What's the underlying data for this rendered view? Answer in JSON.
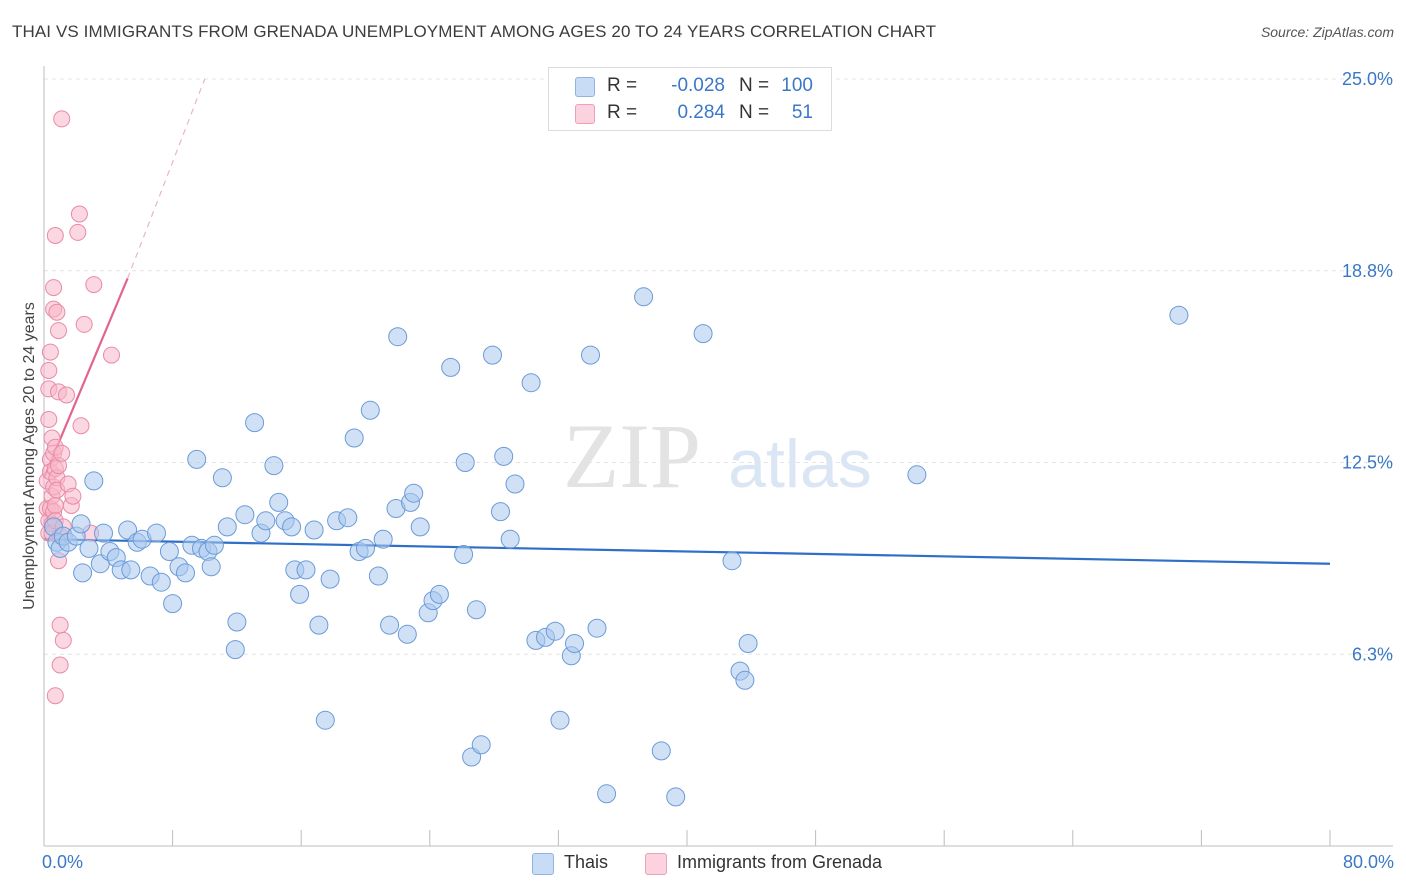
{
  "header": {
    "title": "THAI VS IMMIGRANTS FROM GRENADA UNEMPLOYMENT AMONG AGES 20 TO 24 YEARS CORRELATION CHART",
    "source": "Source: ZipAtlas.com"
  },
  "watermark": {
    "zip": "ZIP",
    "atlas": "atlas"
  },
  "stats": {
    "rows": [
      {
        "r_label": "R =",
        "r_value": "-0.028",
        "n_label": "N =",
        "n_value": "100",
        "color": "#aac8ee"
      },
      {
        "r_label": "R =",
        "r_value": "0.284",
        "n_label": "N =",
        "n_value": "51",
        "color": "#f7b6c9"
      }
    ]
  },
  "legend": {
    "items": [
      {
        "label": "Thais",
        "color": "#aac8ee"
      },
      {
        "label": "Immigrants from Grenada",
        "color": "#f7b6c9"
      }
    ]
  },
  "chart_data": {
    "type": "scatter",
    "title": "THAI VS IMMIGRANTS FROM GRENADA UNEMPLOYMENT AMONG AGES 20 TO 24 YEARS CORRELATION CHART",
    "xlabel": "",
    "ylabel": "Unemployment Among Ages 20 to 24 years",
    "xlim": [
      0,
      80
    ],
    "ylim": [
      0,
      25
    ],
    "x_tick_labels": [
      "0.0%",
      "80.0%"
    ],
    "y_ticks": [
      {
        "value": 6.25,
        "label": "6.3%"
      },
      {
        "value": 12.5,
        "label": "12.5%"
      },
      {
        "value": 18.75,
        "label": "18.8%"
      },
      {
        "value": 25.0,
        "label": "25.0%"
      }
    ],
    "grid": true,
    "series": [
      {
        "name": "Thais",
        "color": "#aac8ee",
        "stroke": "#6b9bd9",
        "trend": {
          "x": [
            0,
            80
          ],
          "y": [
            10.0,
            9.2
          ],
          "color": "#2f6fc7"
        },
        "points": [
          [
            0.6,
            10.4
          ],
          [
            0.8,
            9.9
          ],
          [
            1.0,
            9.7
          ],
          [
            1.2,
            10.1
          ],
          [
            1.5,
            9.9
          ],
          [
            2.0,
            10.1
          ],
          [
            2.3,
            10.5
          ],
          [
            2.4,
            8.9
          ],
          [
            2.8,
            9.7
          ],
          [
            3.1,
            11.9
          ],
          [
            3.5,
            9.2
          ],
          [
            3.7,
            10.2
          ],
          [
            4.1,
            9.6
          ],
          [
            4.5,
            9.4
          ],
          [
            4.8,
            9.0
          ],
          [
            5.2,
            10.3
          ],
          [
            5.4,
            9.0
          ],
          [
            5.8,
            9.9
          ],
          [
            6.1,
            10.0
          ],
          [
            6.6,
            8.8
          ],
          [
            7.0,
            10.2
          ],
          [
            7.3,
            8.6
          ],
          [
            7.8,
            9.6
          ],
          [
            8.0,
            7.9
          ],
          [
            8.4,
            9.1
          ],
          [
            8.8,
            8.9
          ],
          [
            9.2,
            9.8
          ],
          [
            9.5,
            12.6
          ],
          [
            9.8,
            9.7
          ],
          [
            10.2,
            9.6
          ],
          [
            10.4,
            9.1
          ],
          [
            10.6,
            9.8
          ],
          [
            11.1,
            12.0
          ],
          [
            11.4,
            10.4
          ],
          [
            11.9,
            6.4
          ],
          [
            12.0,
            7.3
          ],
          [
            12.5,
            10.8
          ],
          [
            13.1,
            13.8
          ],
          [
            13.5,
            10.2
          ],
          [
            13.8,
            10.6
          ],
          [
            14.3,
            12.4
          ],
          [
            14.6,
            11.2
          ],
          [
            15.0,
            10.6
          ],
          [
            15.4,
            10.4
          ],
          [
            15.6,
            9.0
          ],
          [
            15.9,
            8.2
          ],
          [
            16.3,
            9.0
          ],
          [
            16.8,
            10.3
          ],
          [
            17.1,
            7.2
          ],
          [
            17.5,
            4.1
          ],
          [
            17.8,
            8.7
          ],
          [
            18.2,
            10.6
          ],
          [
            18.9,
            10.7
          ],
          [
            19.3,
            13.3
          ],
          [
            19.6,
            9.6
          ],
          [
            20.0,
            9.7
          ],
          [
            20.3,
            14.2
          ],
          [
            20.8,
            8.8
          ],
          [
            21.1,
            10.0
          ],
          [
            21.5,
            7.2
          ],
          [
            21.9,
            11.0
          ],
          [
            22.0,
            16.6
          ],
          [
            22.6,
            6.9
          ],
          [
            22.8,
            11.2
          ],
          [
            23.0,
            11.5
          ],
          [
            23.4,
            10.4
          ],
          [
            23.9,
            7.6
          ],
          [
            24.2,
            8.0
          ],
          [
            24.6,
            8.2
          ],
          [
            25.3,
            15.6
          ],
          [
            26.1,
            9.5
          ],
          [
            26.2,
            12.5
          ],
          [
            26.6,
            2.9
          ],
          [
            26.9,
            7.7
          ],
          [
            27.2,
            3.3
          ],
          [
            27.9,
            16.0
          ],
          [
            28.4,
            10.9
          ],
          [
            28.6,
            12.7
          ],
          [
            29.0,
            10.0
          ],
          [
            29.3,
            11.8
          ],
          [
            30.3,
            15.1
          ],
          [
            30.6,
            6.7
          ],
          [
            31.2,
            6.8
          ],
          [
            31.8,
            7.0
          ],
          [
            32.1,
            4.1
          ],
          [
            32.8,
            6.2
          ],
          [
            33.0,
            6.6
          ],
          [
            34.0,
            16.0
          ],
          [
            34.4,
            7.1
          ],
          [
            35.0,
            1.7
          ],
          [
            37.3,
            17.9
          ],
          [
            38.4,
            3.1
          ],
          [
            39.3,
            1.6
          ],
          [
            41.0,
            16.7
          ],
          [
            42.8,
            9.3
          ],
          [
            43.3,
            5.7
          ],
          [
            43.6,
            5.4
          ],
          [
            43.8,
            6.6
          ],
          [
            54.3,
            12.1
          ],
          [
            70.6,
            17.3
          ]
        ]
      },
      {
        "name": "Immigrants from Grenada",
        "color": "#f7b6c9",
        "stroke": "#e98aa8",
        "trend": {
          "x": [
            0,
            5.2
          ],
          "y": [
            12.0,
            18.5
          ],
          "color": "#e2648f",
          "extended_to": [
            10.0,
            25.0
          ]
        },
        "points": [
          [
            0.2,
            11.9
          ],
          [
            0.2,
            11.0
          ],
          [
            0.3,
            10.2
          ],
          [
            0.3,
            10.6
          ],
          [
            0.3,
            15.5
          ],
          [
            0.3,
            14.9
          ],
          [
            0.3,
            13.9
          ],
          [
            0.4,
            16.1
          ],
          [
            0.4,
            12.6
          ],
          [
            0.4,
            12.2
          ],
          [
            0.4,
            11.0
          ],
          [
            0.5,
            11.4
          ],
          [
            0.5,
            10.5
          ],
          [
            0.5,
            10.2
          ],
          [
            0.5,
            13.3
          ],
          [
            0.6,
            12.8
          ],
          [
            0.6,
            11.7
          ],
          [
            0.6,
            10.9
          ],
          [
            0.6,
            18.2
          ],
          [
            0.6,
            17.5
          ],
          [
            0.7,
            19.9
          ],
          [
            0.7,
            13.0
          ],
          [
            0.7,
            12.3
          ],
          [
            0.7,
            11.1
          ],
          [
            0.7,
            10.6
          ],
          [
            0.7,
            4.9
          ],
          [
            0.8,
            17.4
          ],
          [
            0.8,
            12.0
          ],
          [
            0.8,
            11.6
          ],
          [
            0.9,
            16.8
          ],
          [
            0.9,
            14.8
          ],
          [
            0.9,
            12.4
          ],
          [
            0.9,
            9.3
          ],
          [
            1.0,
            10.1
          ],
          [
            1.0,
            7.2
          ],
          [
            1.0,
            5.9
          ],
          [
            1.1,
            23.7
          ],
          [
            1.1,
            12.8
          ],
          [
            1.2,
            10.4
          ],
          [
            1.2,
            6.7
          ],
          [
            1.4,
            14.7
          ],
          [
            1.5,
            11.8
          ],
          [
            1.7,
            11.1
          ],
          [
            1.8,
            11.4
          ],
          [
            2.1,
            20.0
          ],
          [
            2.2,
            20.6
          ],
          [
            2.3,
            13.7
          ],
          [
            2.5,
            17.0
          ],
          [
            2.9,
            10.2
          ],
          [
            3.1,
            18.3
          ],
          [
            4.2,
            16.0
          ]
        ]
      }
    ]
  }
}
